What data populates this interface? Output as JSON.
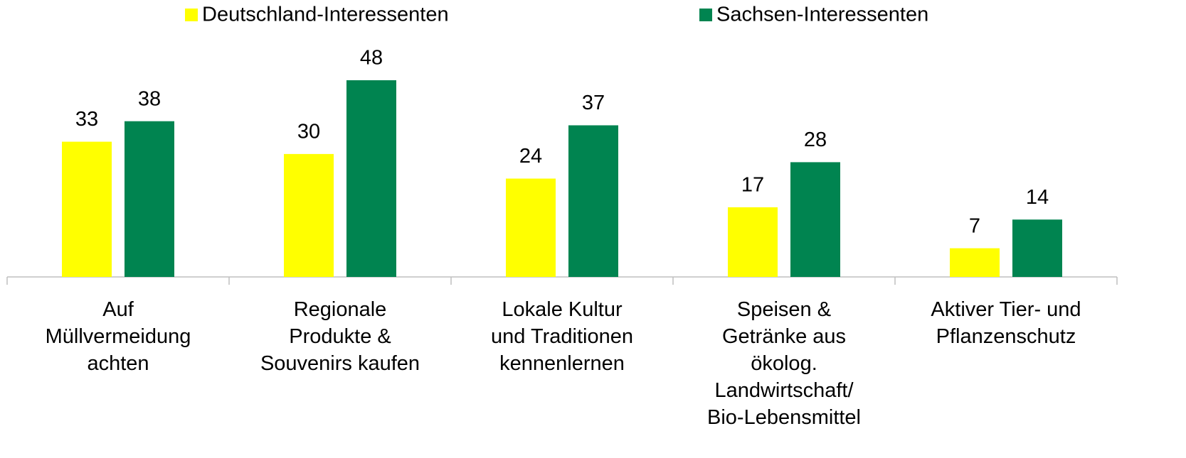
{
  "chart_data": {
    "type": "bar",
    "categories": [
      "Auf\nMüllvermeidung\nachten",
      "Regionale\nProdukte &\nSouvenirs kaufen",
      "Lokale Kultur\nund Traditionen\nkennenlernen",
      "Speisen &\nGetränke aus\nökolog.\nLandwirtschaft/\nBio-Lebensmittel",
      "Aktiver Tier- und\nPflanzenschutz"
    ],
    "series": [
      {
        "name": "Deutschland-Interessenten",
        "color": "#ffff00",
        "values": [
          33,
          30,
          24,
          17,
          7
        ]
      },
      {
        "name": "Sachsen-Interessenten",
        "color": "#008450",
        "values": [
          38,
          48,
          37,
          28,
          14
        ]
      }
    ],
    "legend": "top"
  }
}
